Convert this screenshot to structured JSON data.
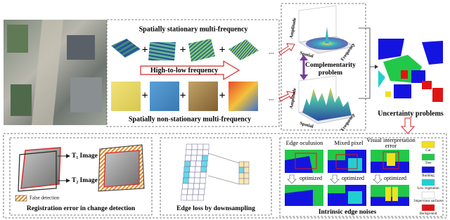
{
  "top_panel": {
    "stationary_label": "Spatially stationary multi-frequency",
    "arrow_label": "High-to-low frequency",
    "non_stationary_label": "Spatially non-stationary multi-frequency"
  },
  "plots": [
    {
      "y_axis": "Amplitude",
      "x_axis": "Spatial",
      "z_axis": "Frequency"
    },
    {
      "y_axis": "Amplitude",
      "x_axis": "Spatial",
      "z_axis": "Frequency"
    }
  ],
  "complementarity": [
    "Complementarity",
    "problem"
  ],
  "uncertainty": "Uncertainty  problems",
  "registration": {
    "t1": "T₁ Image",
    "t2": "T₂ Image",
    "legend": "False detection",
    "caption": "Registration error in change detection"
  },
  "edge_loss": {
    "caption": "Edge loss by downsampling"
  },
  "edge_noise": {
    "titles": [
      "Edge oculusion",
      "Mixed pixel"
    ],
    "visual": [
      "Visual interpretation",
      "error"
    ],
    "optimized": [
      "optimized",
      "optimized",
      "optimized"
    ],
    "caption": "Intrinsic edge noises",
    "legend": [
      "Car",
      "Tree",
      "Building",
      "Low vegetation",
      "Impervious surfaces",
      "Background"
    ]
  }
}
